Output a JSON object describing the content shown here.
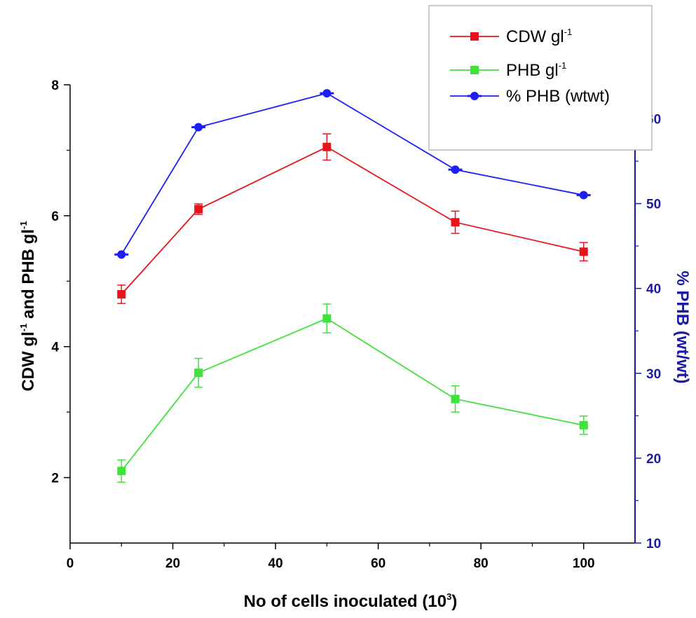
{
  "chart_data": {
    "type": "line",
    "x": [
      10,
      25,
      50,
      75,
      100
    ],
    "xlabel": "No of cells inoculated (10",
    "xlabel_sup": "3",
    "xlabel_end": ")",
    "ylabel_left_parts": [
      "CDW gl",
      "-1",
      " and PHB gl",
      "-1"
    ],
    "ylabel_right": "% PHB (wt/wt)",
    "xlim": [
      0,
      110
    ],
    "ylim_left": [
      1,
      8
    ],
    "ylim_right": [
      10,
      64
    ],
    "xticks": [
      0,
      20,
      40,
      60,
      80,
      100
    ],
    "yticks_left": [
      2,
      4,
      6,
      8
    ],
    "yticks_right": [
      10,
      20,
      30,
      40,
      50,
      60
    ],
    "grid": false,
    "legend_placement": "top-right",
    "series": [
      {
        "name": "CDW gl",
        "name_sup": "-1",
        "axis": "left",
        "color": "#e8141c",
        "marker": "square",
        "values": [
          4.8,
          6.1,
          7.05,
          5.9,
          5.45
        ],
        "errors": [
          0.14,
          0.08,
          0.2,
          0.17,
          0.14
        ]
      },
      {
        "name": "PHB gl",
        "name_sup": "-1",
        "axis": "left",
        "color": "#3ee23a",
        "marker": "square",
        "values": [
          2.1,
          3.6,
          4.43,
          3.2,
          2.8
        ],
        "errors": [
          0.17,
          0.22,
          0.22,
          0.2,
          0.14
        ]
      },
      {
        "name": "% PHB (wtwt)",
        "name_sup": "",
        "axis": "right",
        "color": "#1d1ff2",
        "marker": "diamond",
        "values": [
          44,
          59,
          63,
          54,
          51
        ],
        "errors": [
          0,
          0,
          0,
          0,
          0
        ]
      }
    ]
  }
}
